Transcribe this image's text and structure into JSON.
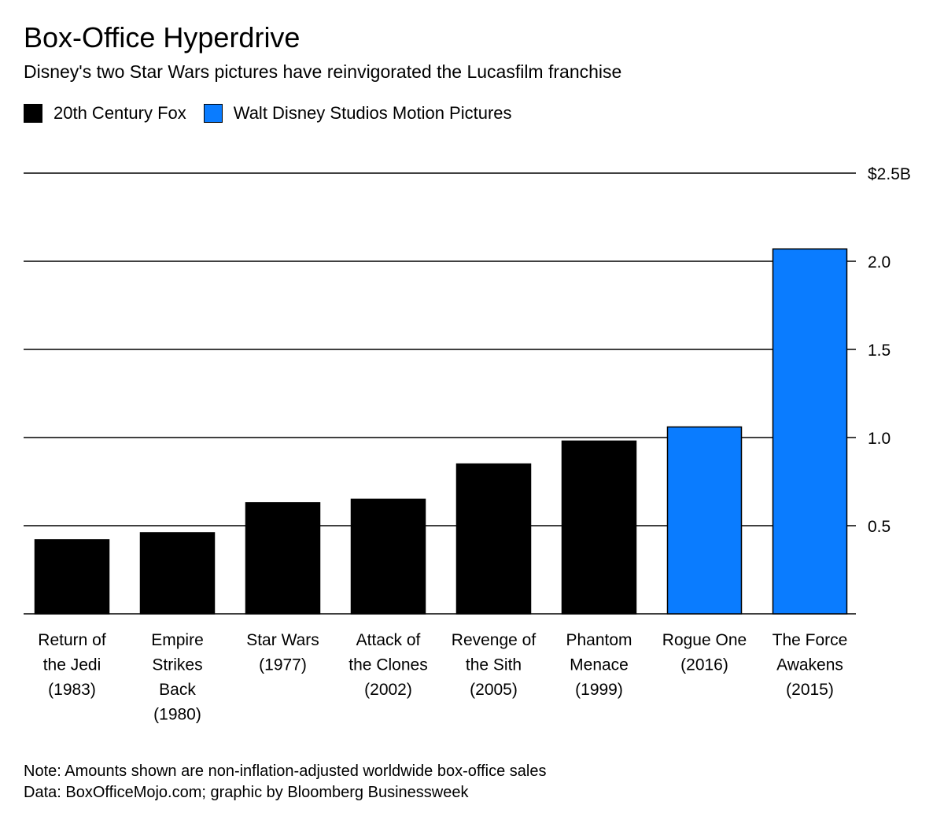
{
  "chart_data": {
    "type": "bar",
    "title": "Box-Office Hyperdrive",
    "subtitle": "Disney's two Star Wars pictures have reinvigorated the Lucasfilm franchise",
    "legend": [
      {
        "name": "20th Century Fox",
        "color": "#000000"
      },
      {
        "name": "Walt Disney Studios Motion Pictures",
        "color": "#0a7cff"
      }
    ],
    "categories": [
      [
        "Return of",
        "the Jedi",
        "(1983)"
      ],
      [
        "Empire",
        "Strikes",
        "Back",
        "(1980)"
      ],
      [
        "Star Wars",
        "(1977)"
      ],
      [
        "Attack of",
        "the Clones",
        "(2002)"
      ],
      [
        "Revenge of",
        "the Sith",
        "(2005)"
      ],
      [
        "Phantom",
        "Menace",
        "(1999)"
      ],
      [
        "Rogue One",
        "(2016)"
      ],
      [
        "The Force",
        "Awakens",
        "(2015)"
      ]
    ],
    "values": [
      0.42,
      0.46,
      0.63,
      0.65,
      0.85,
      0.98,
      1.06,
      2.07
    ],
    "series_index": [
      0,
      0,
      0,
      0,
      0,
      0,
      1,
      1
    ],
    "yticks": [
      {
        "value": 0.5,
        "label": "0.5"
      },
      {
        "value": 1.0,
        "label": "1.0"
      },
      {
        "value": 1.5,
        "label": "1.5"
      },
      {
        "value": 2.0,
        "label": "2.0"
      },
      {
        "value": 2.5,
        "label": "$2.5B"
      }
    ],
    "ylim": [
      0,
      2.5
    ],
    "xlabel": "",
    "ylabel": ""
  },
  "footer": {
    "note": "Note: Amounts shown are non-inflation-adjusted worldwide box-office sales",
    "source": "Data: BoxOfficeMojo.com; graphic by Bloomberg Businessweek"
  }
}
